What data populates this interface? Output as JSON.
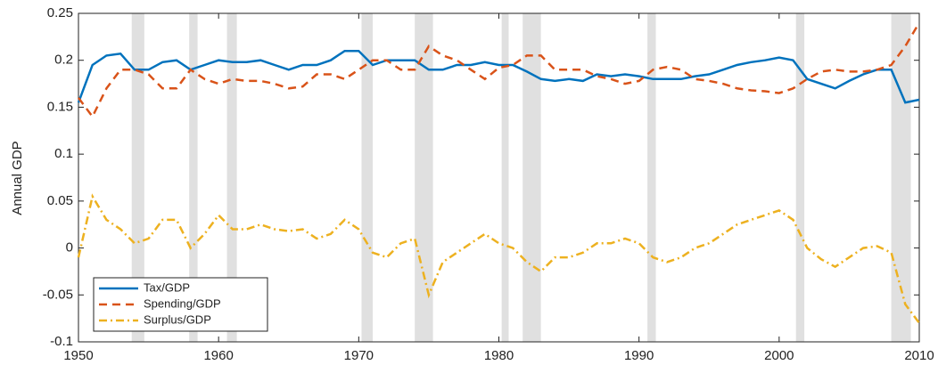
{
  "chart_data": {
    "type": "line",
    "ylabel": "Annual GDP",
    "x": [
      1950,
      1951,
      1952,
      1953,
      1954,
      1955,
      1956,
      1957,
      1958,
      1959,
      1960,
      1961,
      1962,
      1963,
      1964,
      1965,
      1966,
      1967,
      1968,
      1969,
      1970,
      1971,
      1972,
      1973,
      1974,
      1975,
      1976,
      1977,
      1978,
      1979,
      1980,
      1981,
      1982,
      1983,
      1984,
      1985,
      1986,
      1987,
      1988,
      1989,
      1990,
      1991,
      1992,
      1993,
      1994,
      1995,
      1996,
      1997,
      1998,
      1999,
      2000,
      2001,
      2002,
      2003,
      2004,
      2005,
      2006,
      2007,
      2008,
      2009,
      2010
    ],
    "series": [
      {
        "name": "Tax/GDP",
        "color": "#0072bd",
        "dash": "solid",
        "values": [
          0.155,
          0.195,
          0.205,
          0.207,
          0.19,
          0.19,
          0.198,
          0.2,
          0.19,
          0.195,
          0.2,
          0.198,
          0.198,
          0.2,
          0.195,
          0.19,
          0.195,
          0.195,
          0.2,
          0.21,
          0.21,
          0.195,
          0.2,
          0.2,
          0.2,
          0.19,
          0.19,
          0.195,
          0.195,
          0.198,
          0.195,
          0.195,
          0.188,
          0.18,
          0.178,
          0.18,
          0.178,
          0.185,
          0.183,
          0.185,
          0.183,
          0.18,
          0.18,
          0.18,
          0.183,
          0.185,
          0.19,
          0.195,
          0.198,
          0.2,
          0.203,
          0.2,
          0.18,
          0.175,
          0.17,
          0.178,
          0.185,
          0.19,
          0.19,
          0.155,
          0.158
        ]
      },
      {
        "name": "Spending/GDP",
        "color": "#d95319",
        "dash": "dashed",
        "values": [
          0.16,
          0.14,
          0.17,
          0.19,
          0.19,
          0.185,
          0.17,
          0.17,
          0.19,
          0.18,
          0.175,
          0.18,
          0.178,
          0.178,
          0.175,
          0.17,
          0.172,
          0.185,
          0.185,
          0.18,
          0.19,
          0.2,
          0.2,
          0.19,
          0.19,
          0.215,
          0.205,
          0.2,
          0.19,
          0.18,
          0.192,
          0.195,
          0.205,
          0.205,
          0.19,
          0.19,
          0.19,
          0.183,
          0.18,
          0.175,
          0.178,
          0.19,
          0.193,
          0.19,
          0.18,
          0.178,
          0.175,
          0.17,
          0.168,
          0.167,
          0.165,
          0.17,
          0.18,
          0.188,
          0.19,
          0.188,
          0.188,
          0.19,
          0.195,
          0.215,
          0.24
        ]
      },
      {
        "name": "Surplus/GDP",
        "color": "#edb120",
        "dash": "dashdot",
        "values": [
          -0.01,
          0.055,
          0.03,
          0.02,
          0.005,
          0.01,
          0.03,
          0.03,
          0.0,
          0.015,
          0.035,
          0.02,
          0.02,
          0.025,
          0.02,
          0.018,
          0.02,
          0.01,
          0.015,
          0.03,
          0.02,
          -0.005,
          -0.01,
          0.005,
          0.01,
          -0.05,
          -0.015,
          -0.005,
          0.005,
          0.015,
          0.005,
          0.0,
          -0.015,
          -0.025,
          -0.01,
          -0.01,
          -0.005,
          0.005,
          0.005,
          0.01,
          0.005,
          -0.01,
          -0.015,
          -0.01,
          0.0,
          0.005,
          0.015,
          0.025,
          0.03,
          0.035,
          0.04,
          0.03,
          0.0,
          -0.012,
          -0.02,
          -0.01,
          0.0,
          0.002,
          -0.005,
          -0.06,
          -0.08
        ]
      }
    ],
    "recessions": [
      [
        1953.8,
        1954.7
      ],
      [
        1957.9,
        1958.5
      ],
      [
        1960.6,
        1961.3
      ],
      [
        1970.2,
        1971.0
      ],
      [
        1974.0,
        1975.3
      ],
      [
        1980.2,
        1980.7
      ],
      [
        1981.7,
        1983.0
      ],
      [
        1990.6,
        1991.2
      ],
      [
        2001.2,
        2001.8
      ],
      [
        2008.0,
        2009.4
      ]
    ],
    "recession_color": "#e0e0e0",
    "xlim": [
      1950,
      2010
    ],
    "xticks": [
      1950,
      1960,
      1970,
      1980,
      1990,
      2000,
      2010
    ],
    "ylim": [
      -0.1,
      0.25
    ],
    "yticks": [
      -0.1,
      -0.05,
      0,
      0.05,
      0.1,
      0.15,
      0.2,
      0.25
    ],
    "legend": "lower left"
  }
}
